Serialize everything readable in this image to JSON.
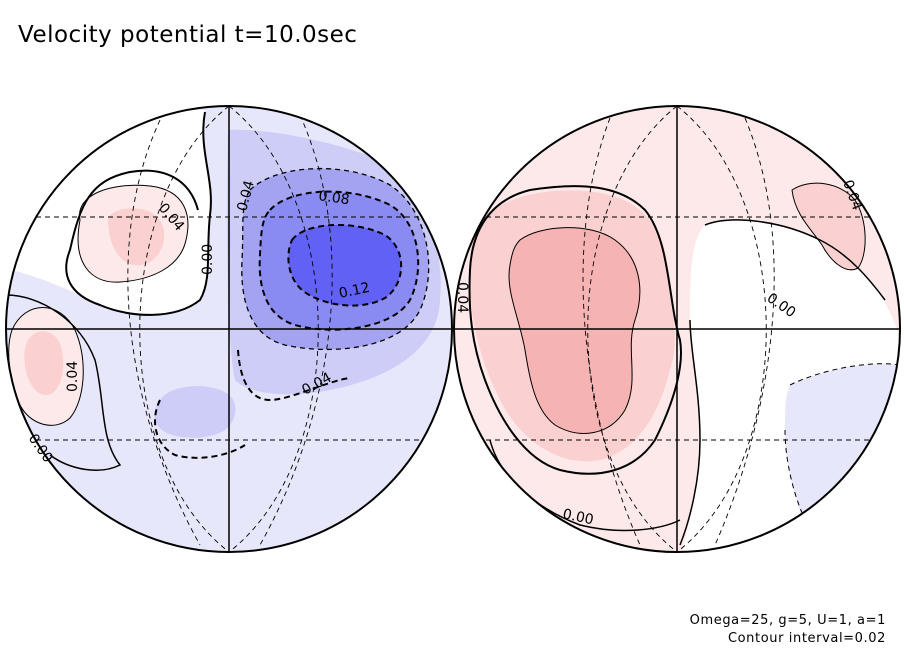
{
  "title": "Velocity potential t=10.0sec",
  "params": {
    "line1": "Omega=25, g=5, U=1, a=1",
    "line2": "Contour interval=0.02"
  },
  "colors": {
    "neg_1": "#e7e7fb",
    "neg_2": "#cdcdf7",
    "neg_3": "#a3a3f2",
    "neg_4": "#8a8af3",
    "neg_5": "#6161f6",
    "pos_1": "#fde9e9",
    "pos_2": "#fbd0d0",
    "pos_3": "#f6b3b3"
  },
  "contour_labels": {
    "left_pos_upper": "0.04",
    "left_zero_upper": "0.00",
    "left_neg_upper": "0.04",
    "left_neg_mid": "0.08",
    "left_neg_min": "0.12",
    "left_pos_lower": "0.04",
    "left_neg_lower": "0.04",
    "left_zero_lower": "0.00",
    "right_pos_left": "0.04",
    "right_zero_mid": "0.00",
    "right_pos_upper": "0.04",
    "right_zero_lower": "0.00"
  }
}
